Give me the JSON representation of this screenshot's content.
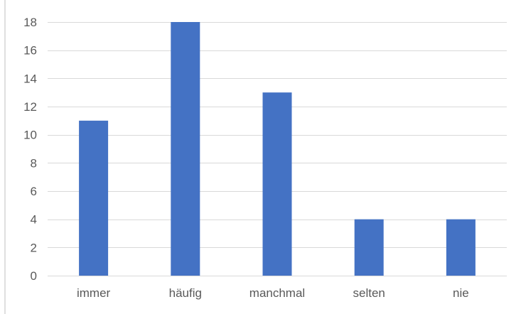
{
  "chart_data": {
    "type": "bar",
    "title": "",
    "xlabel": "",
    "ylabel": "",
    "categories": [
      "immer",
      "häufig",
      "manchmal",
      "selten",
      "nie"
    ],
    "values": [
      11,
      18,
      13,
      4,
      4
    ],
    "ylim": [
      0,
      18
    ],
    "yticks": [
      0,
      2,
      4,
      6,
      8,
      10,
      12,
      14,
      16,
      18
    ],
    "grid": true,
    "legend": "none",
    "bar_color": "#4472c4",
    "grid_color": "#d9d9d9",
    "text_color": "#595959"
  }
}
